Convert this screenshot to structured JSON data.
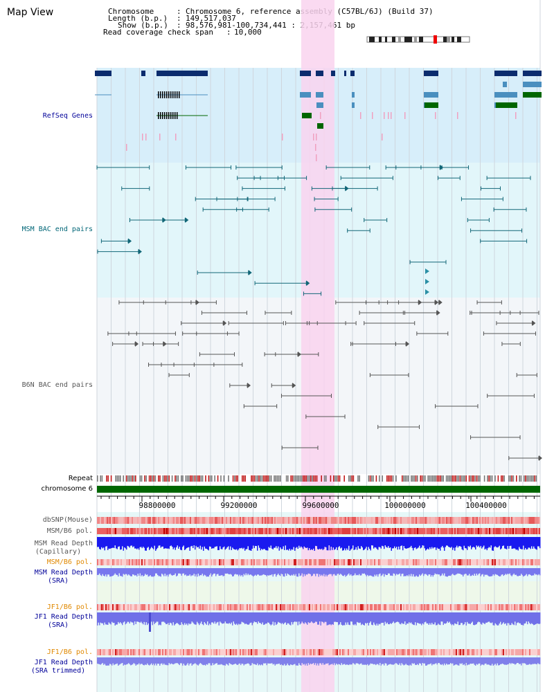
{
  "view_title": "Map View",
  "header": {
    "chromosome_key": "Chromosome",
    "chromosome_val": "Chromosome 6, reference assembly (C57BL/6J) (Build 37)",
    "length_key": "Length (b.p.)",
    "length_val": "149,517,037",
    "show_key": "Show (b.p.)",
    "show_val": "98,576,981-100,734,441 : 2,157,461 bp",
    "span_key": "Read coverage check span",
    "span_val": "10,000"
  },
  "tracks": {
    "refseq": "RefSeq Genes",
    "msm_bac": "MSM BAC end pairs",
    "b6n_bac": "B6N BAC end pairs",
    "repeat": "Repeat",
    "chromosome": "chromosome 6",
    "dbsnp": "dbSNP(Mouse)",
    "msm_b6_pol": "MSM/B6 pol.",
    "msm_depth_cap_1": "MSM Read Depth",
    "msm_depth_cap_2": "(Capillary)",
    "msm_b6_pol2": "MSM/B6 pol.",
    "msm_depth_sra_1": "MSM Read Depth",
    "msm_depth_sra_2": "(SRA)",
    "jf1_b6_pol": "JF1/B6 pol.",
    "jf1_depth_1": "JF1 Read Depth",
    "jf1_depth_2": "(SRA)",
    "jf1_b6_pol2": "JF1/B6 pol.",
    "jf1_trim_1": "JF1 Read Depth",
    "jf1_trim_2": "(SRA trimmed)"
  },
  "axis": {
    "ticks": [
      "98800000",
      "99200000",
      "99600000",
      "100000000",
      "100400000"
    ]
  },
  "colors": {
    "gene_dark": "#0b2c6e",
    "gene_mid": "#4a8fbf",
    "gene_green": "#006600",
    "msm_line": "#116677",
    "b6n_line": "#555555",
    "highlight": "#f9d4ee",
    "refseq_bg": "#d7eefa",
    "msm_bg": "#e2f6fa",
    "b6n_bg": "#f3f6f9",
    "label_blue": "#000099",
    "label_teal": "#006677",
    "label_orange": "#e08800",
    "chromosome_bar": "#006600"
  }
}
